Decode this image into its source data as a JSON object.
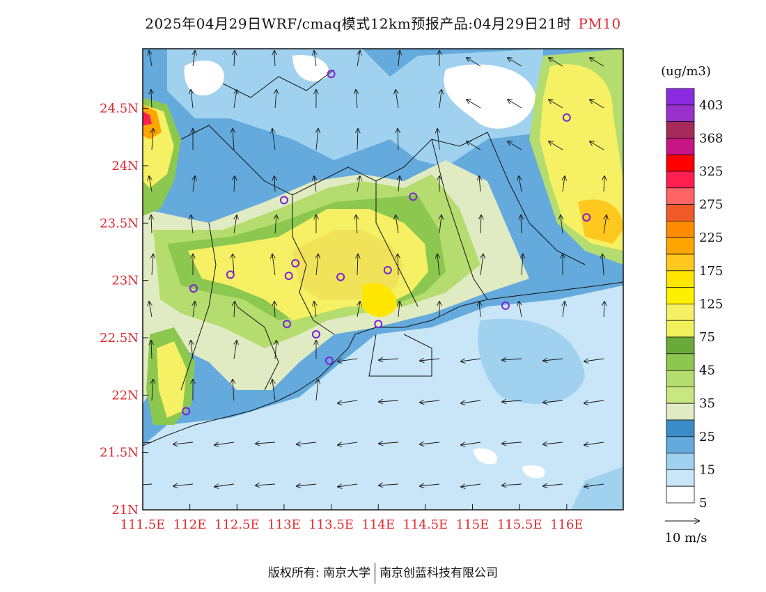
{
  "header": {
    "title": "2025年04月29日WRF/cmaq模式12km预报产品:04月29日21时",
    "variable": "PM10"
  },
  "legend": {
    "unit": "(ug/m3)",
    "labels": [
      "403",
      "368",
      "325",
      "275",
      "225",
      "175",
      "125",
      "75",
      "45",
      "35",
      "25",
      "15",
      "5"
    ],
    "colors": [
      "#8a2be2",
      "#9932cc",
      "#a52a5a",
      "#c71585",
      "#ff0000",
      "#ff1e50",
      "#ff6464",
      "#f05a28",
      "#ff8c00",
      "#ffa500",
      "#ffc81e",
      "#ffe600",
      "#fff000",
      "#f5f064",
      "#f0f05a",
      "#6aaa3a",
      "#8cc850",
      "#b4dc6e",
      "#c8e682",
      "#e1ebc3",
      "#3c8cc8",
      "#64aadc",
      "#a0d2f0",
      "#c8e6f8",
      "#ffffff"
    ],
    "vector_label": "10 m/s"
  },
  "axes": {
    "x_ticks": [
      "111.5E",
      "112E",
      "112.5E",
      "113E",
      "113.5E",
      "114E",
      "114.5E",
      "115E",
      "115.5E",
      "116E"
    ],
    "y_ticks": [
      "24.5N",
      "24N",
      "23.5N",
      "23N",
      "22.5N",
      "22N",
      "21.5N",
      "21N"
    ]
  },
  "stations": [
    {
      "lon": 113.5,
      "lat": 24.8
    },
    {
      "lon": 116.0,
      "lat": 24.42
    },
    {
      "lon": 113.0,
      "lat": 23.7
    },
    {
      "lon": 114.37,
      "lat": 23.73
    },
    {
      "lon": 116.21,
      "lat": 23.55
    },
    {
      "lon": 112.43,
      "lat": 23.05
    },
    {
      "lon": 112.04,
      "lat": 22.93
    },
    {
      "lon": 113.05,
      "lat": 23.04
    },
    {
      "lon": 113.12,
      "lat": 23.15
    },
    {
      "lon": 113.6,
      "lat": 23.03
    },
    {
      "lon": 114.1,
      "lat": 23.09
    },
    {
      "lon": 113.03,
      "lat": 22.62
    },
    {
      "lon": 113.34,
      "lat": 22.53
    },
    {
      "lon": 114.0,
      "lat": 22.62
    },
    {
      "lon": 115.35,
      "lat": 22.78
    },
    {
      "lon": 113.48,
      "lat": 22.3
    },
    {
      "lon": 111.96,
      "lat": 21.86
    }
  ],
  "footer": {
    "left": "版权所有: 南京大学",
    "right": "南京创蓝科技有限公司"
  }
}
